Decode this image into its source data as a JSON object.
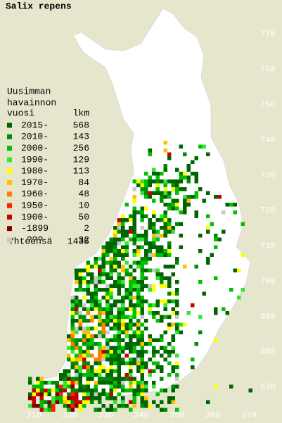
{
  "title": "Salix repens",
  "legend": {
    "heading": [
      "Uusimman",
      "havainnon",
      "vuosi",
      "lkm"
    ],
    "items": [
      {
        "label": "2015-",
        "count": "568",
        "color": "#006400"
      },
      {
        "label": "2010-",
        "count": "143",
        "color": "#008c00"
      },
      {
        "label": "2000-",
        "count": "256",
        "color": "#00c000"
      },
      {
        "label": "1990-",
        "count": "129",
        "color": "#33e633"
      },
      {
        "label": "1980-",
        "count": "113",
        "color": "#ffff00"
      },
      {
        "label": "1970-",
        "count": "84",
        "color": "#ffc000"
      },
      {
        "label": "1960-",
        "count": "48",
        "color": "#ff7f00"
      },
      {
        "label": "1950-",
        "count": "10",
        "color": "#ff2000"
      },
      {
        "label": "1900-",
        "count": "50",
        "color": "#c80000"
      },
      {
        "label": "-1899",
        "count": "2",
        "color": "#800000"
      },
      {
        "label": "???",
        "count": "32",
        "color": "#c8c8c8"
      }
    ],
    "total_label": "Yhteensä",
    "total": "1435"
  },
  "grid": {
    "y_labels": [
      "770",
      "760",
      "750",
      "740",
      "730",
      "720",
      "710",
      "700",
      "690",
      "680",
      "670"
    ],
    "x_labels": [
      "310",
      "320",
      "330",
      "340",
      "350",
      "360",
      "370"
    ]
  }
}
